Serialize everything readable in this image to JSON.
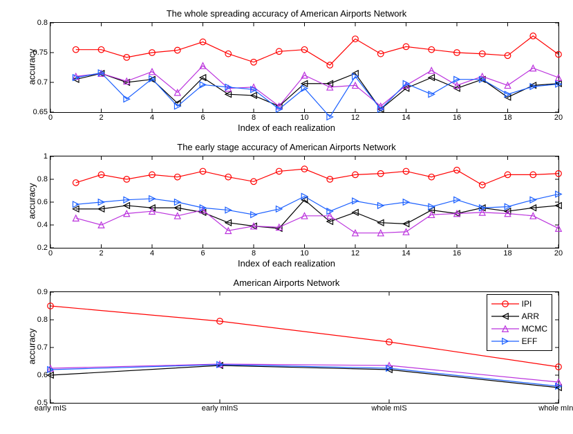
{
  "colors": {
    "IPI": "#ff0000",
    "ARR": "#000000",
    "MCMC": "#bb33dd",
    "EFF": "#1a5fff",
    "axis": "#000000",
    "bg": "#ffffff"
  },
  "line_width": 1.2,
  "marker_size": 6,
  "markers": {
    "IPI": "circle",
    "ARR": "tri-left",
    "MCMC": "tri-up",
    "EFF": "tri-right"
  },
  "chart1": {
    "title": "The whole spreading accuracy of American Airports Network",
    "xlabel": "Index of each realization",
    "ylabel": "accuracy",
    "xlim": [
      0,
      20
    ],
    "ylim": [
      0.65,
      0.8
    ],
    "xticks": [
      0,
      2,
      4,
      6,
      8,
      10,
      12,
      14,
      16,
      18,
      20
    ],
    "yticks": [
      0.65,
      0.7,
      0.75,
      0.8
    ],
    "x": [
      1,
      2,
      3,
      4,
      5,
      6,
      7,
      8,
      9,
      10,
      11,
      12,
      13,
      14,
      15,
      16,
      17,
      18,
      19,
      20
    ],
    "series": {
      "IPI": [
        0.755,
        0.755,
        0.742,
        0.75,
        0.754,
        0.768,
        0.748,
        0.734,
        0.752,
        0.755,
        0.729,
        0.773,
        0.748,
        0.76,
        0.755,
        0.75,
        0.748,
        0.745,
        0.778,
        0.747
      ],
      "ARR": [
        0.705,
        0.715,
        0.7,
        0.705,
        0.665,
        0.708,
        0.68,
        0.678,
        0.66,
        0.698,
        0.698,
        0.715,
        0.655,
        0.69,
        0.708,
        0.69,
        0.705,
        0.675,
        0.695,
        0.698
      ],
      "MCMC": [
        0.71,
        0.715,
        0.702,
        0.718,
        0.683,
        0.728,
        0.69,
        0.692,
        0.66,
        0.712,
        0.692,
        0.695,
        0.66,
        0.695,
        0.72,
        0.695,
        0.71,
        0.695,
        0.724,
        0.708
      ],
      "EFF": [
        0.708,
        0.716,
        0.672,
        0.706,
        0.66,
        0.696,
        0.692,
        0.688,
        0.655,
        0.69,
        0.642,
        0.71,
        0.655,
        0.698,
        0.68,
        0.705,
        0.705,
        0.68,
        0.693,
        0.697
      ]
    }
  },
  "chart2": {
    "title": "The early stage accuracy of American Airports Network",
    "xlabel": "Index of each realization",
    "ylabel": "accuracy",
    "xlim": [
      0,
      20
    ],
    "ylim": [
      0.2,
      1.0
    ],
    "xticks": [
      0,
      2,
      4,
      6,
      8,
      10,
      12,
      14,
      16,
      18,
      20
    ],
    "yticks": [
      0.2,
      0.4,
      0.6,
      0.8,
      1.0
    ],
    "x": [
      1,
      2,
      3,
      4,
      5,
      6,
      7,
      8,
      9,
      10,
      11,
      12,
      13,
      14,
      15,
      16,
      17,
      18,
      19,
      20
    ],
    "series": {
      "IPI": [
        0.77,
        0.84,
        0.8,
        0.84,
        0.82,
        0.87,
        0.82,
        0.78,
        0.87,
        0.89,
        0.8,
        0.84,
        0.85,
        0.87,
        0.82,
        0.88,
        0.75,
        0.84,
        0.84,
        0.85
      ],
      "ARR": [
        0.54,
        0.54,
        0.57,
        0.55,
        0.55,
        0.51,
        0.42,
        0.39,
        0.37,
        0.62,
        0.43,
        0.51,
        0.42,
        0.41,
        0.53,
        0.5,
        0.55,
        0.52,
        0.55,
        0.57
      ],
      "MCMC": [
        0.46,
        0.4,
        0.5,
        0.52,
        0.48,
        0.53,
        0.35,
        0.39,
        0.38,
        0.48,
        0.48,
        0.33,
        0.33,
        0.34,
        0.49,
        0.5,
        0.51,
        0.5,
        0.48,
        0.37
      ],
      "EFF": [
        0.58,
        0.6,
        0.62,
        0.63,
        0.6,
        0.55,
        0.53,
        0.49,
        0.54,
        0.65,
        0.52,
        0.61,
        0.57,
        0.6,
        0.56,
        0.62,
        0.55,
        0.56,
        0.62,
        0.67
      ]
    }
  },
  "chart3": {
    "title": "American Airports Network",
    "ylabel": "accuracy",
    "xlim": [
      0,
      3
    ],
    "ylim": [
      0.5,
      0.9
    ],
    "xticks": [
      0,
      1,
      2,
      3
    ],
    "xticklabels": [
      "early mIS",
      "early mInS",
      "whole mIS",
      "whole mInS"
    ],
    "yticks": [
      0.5,
      0.6,
      0.7,
      0.8,
      0.9
    ],
    "x": [
      0,
      1,
      2,
      3
    ],
    "series": {
      "IPI": [
        0.85,
        0.795,
        0.72,
        0.63
      ],
      "ARR": [
        0.6,
        0.635,
        0.62,
        0.555
      ],
      "MCMC": [
        0.625,
        0.64,
        0.635,
        0.575
      ],
      "EFF": [
        0.62,
        0.638,
        0.625,
        0.56
      ]
    },
    "legend": [
      "IPI",
      "ARR",
      "MCMC",
      "EFF"
    ]
  }
}
